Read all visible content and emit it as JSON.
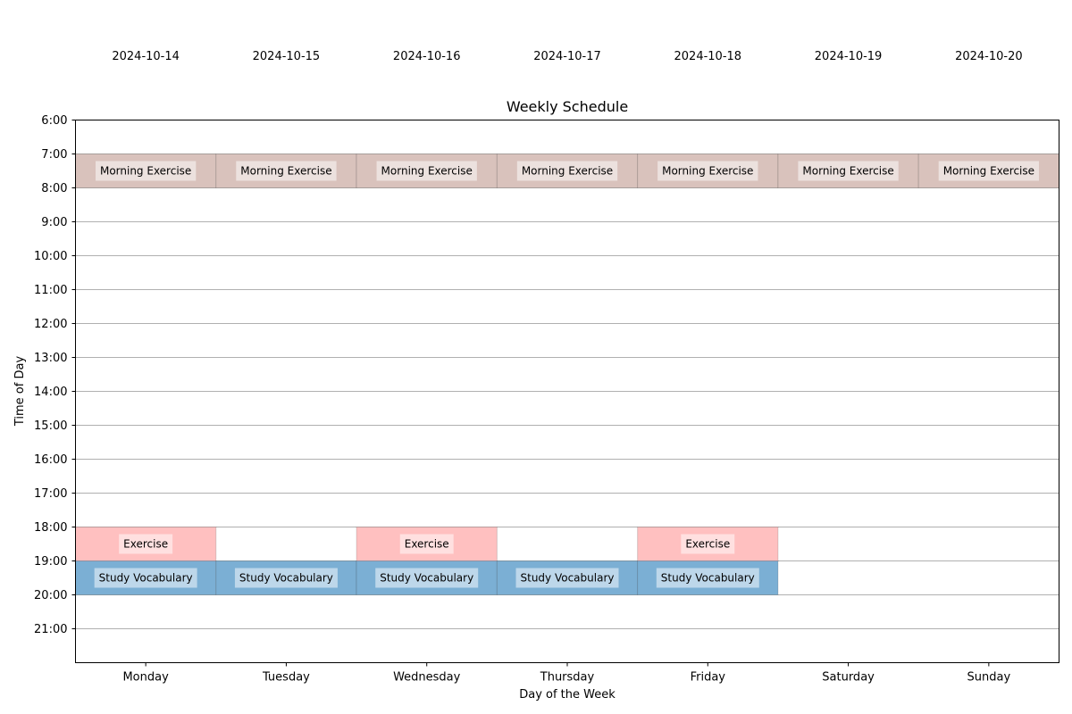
{
  "chart_data": {
    "type": "timeline",
    "title": "Weekly Schedule",
    "xlabel": "Day of the Week",
    "ylabel": "Time of Day",
    "days": [
      "Monday",
      "Tuesday",
      "Wednesday",
      "Thursday",
      "Friday",
      "Saturday",
      "Sunday"
    ],
    "dates": [
      "2024-10-14",
      "2024-10-15",
      "2024-10-16",
      "2024-10-17",
      "2024-10-18",
      "2024-10-19",
      "2024-10-20"
    ],
    "hour_labels": [
      "6:00",
      "7:00",
      "8:00",
      "9:00",
      "10:00",
      "11:00",
      "12:00",
      "13:00",
      "14:00",
      "15:00",
      "16:00",
      "17:00",
      "18:00",
      "19:00",
      "20:00",
      "21:00"
    ],
    "ylim": [
      6,
      22
    ],
    "grid": "horizontal",
    "colors": {
      "Morning Exercise": "#d9c2bc",
      "Exercise": "#ffc0c0",
      "Study Vocabulary": "#7bafd4"
    },
    "events": [
      {
        "label": "Morning Exercise",
        "day": "Monday",
        "start": 7,
        "end": 8
      },
      {
        "label": "Morning Exercise",
        "day": "Tuesday",
        "start": 7,
        "end": 8
      },
      {
        "label": "Morning Exercise",
        "day": "Wednesday",
        "start": 7,
        "end": 8
      },
      {
        "label": "Morning Exercise",
        "day": "Thursday",
        "start": 7,
        "end": 8
      },
      {
        "label": "Morning Exercise",
        "day": "Friday",
        "start": 7,
        "end": 8
      },
      {
        "label": "Morning Exercise",
        "day": "Saturday",
        "start": 7,
        "end": 8
      },
      {
        "label": "Morning Exercise",
        "day": "Sunday",
        "start": 7,
        "end": 8
      },
      {
        "label": "Exercise",
        "day": "Monday",
        "start": 18,
        "end": 19
      },
      {
        "label": "Exercise",
        "day": "Wednesday",
        "start": 18,
        "end": 19
      },
      {
        "label": "Exercise",
        "day": "Friday",
        "start": 18,
        "end": 19
      },
      {
        "label": "Study Vocabulary",
        "day": "Monday",
        "start": 19,
        "end": 20
      },
      {
        "label": "Study Vocabulary",
        "day": "Tuesday",
        "start": 19,
        "end": 20
      },
      {
        "label": "Study Vocabulary",
        "day": "Wednesday",
        "start": 19,
        "end": 20
      },
      {
        "label": "Study Vocabulary",
        "day": "Thursday",
        "start": 19,
        "end": 20
      },
      {
        "label": "Study Vocabulary",
        "day": "Friday",
        "start": 19,
        "end": 20
      }
    ]
  }
}
